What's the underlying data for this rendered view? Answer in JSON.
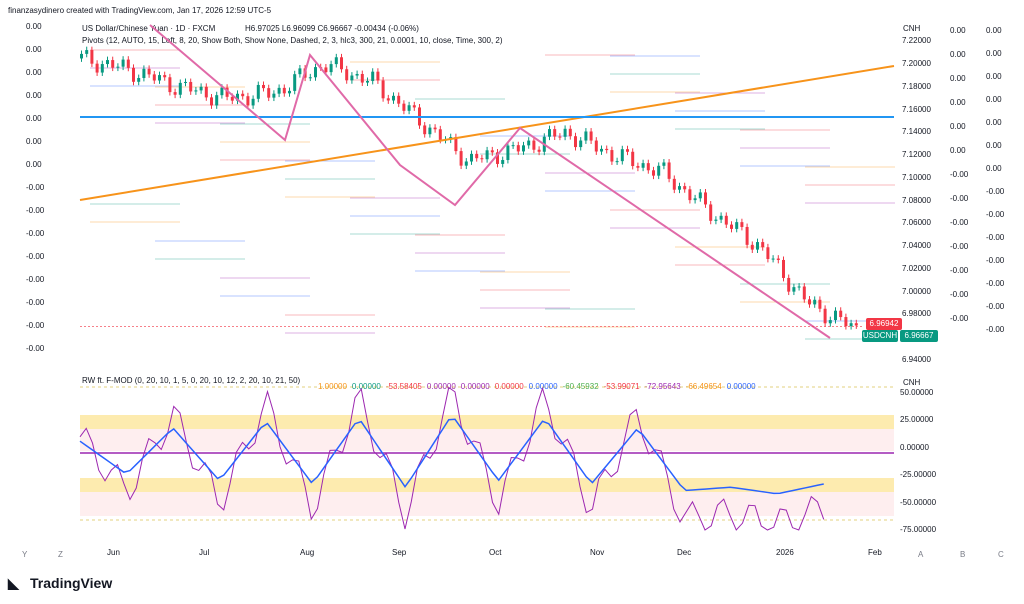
{
  "header": {
    "credit": "finanzasydinero created with TradingView.com, Jan 17, 2026 12:59 UTC-5",
    "symbol_line": "US Dollar/Chinese Yuan · 1D · FXCM",
    "ohlc": "H6.97025 L6.96099 C6.96667 -0.00434 (-0.06%)",
    "pivots_line": "Pivots (12, AUTO, 15, Left, 8, 20, Show Both, Show None, Dashed, 2, 3, hlc3, 300, 21, 0.0001, 10, close, Time, 300, 2)",
    "indicator_line": "RW ft. F-MOD (0, 20, 10, 1, 5, 0, 20, 10, 12, 2, 20, 10, 21, 50)",
    "indicator_values": [
      "1.00000",
      "0.00000",
      "-53.58405",
      "0.00000",
      "0.00000",
      "0.00000",
      "0.00000",
      "-60.45932",
      "-53.99071",
      "-72.95643",
      "-66.49654",
      "0.00000"
    ],
    "indicator_colors": [
      "#f7931a",
      "#089981",
      "#f23645",
      "#9c27b0",
      "#9c27b0",
      "#f23645",
      "#2962ff",
      "#4caf50",
      "#f23645",
      "#9c27b0",
      "#f7931a",
      "#2962ff"
    ]
  },
  "price_scale": {
    "currency": "CNH",
    "ticks": [
      "7.22000",
      "7.20000",
      "7.18000",
      "7.16000",
      "7.14000",
      "7.12000",
      "7.10000",
      "7.08000",
      "7.06000",
      "7.04000",
      "7.02000",
      "7.00000",
      "6.98000",
      "6.96000",
      "6.94000"
    ],
    "last_price_tag": "6.96942",
    "symbol_tag": "USDCNH",
    "close_tag": "6.96667"
  },
  "left_scale": [
    "0.00",
    "0.00",
    "0.00",
    "0.00",
    "0.00",
    "0.00",
    "0.00",
    "-0.00",
    "-0.00",
    "-0.00",
    "-0.00",
    "-0.00",
    "-0.00",
    "-0.00",
    "-0.00"
  ],
  "right_scale_a": [
    "0.00",
    "0.00",
    "0.00",
    "0.00",
    "0.00",
    "0.00",
    "-0.00",
    "-0.00",
    "-0.00",
    "-0.00",
    "-0.00",
    "-0.00",
    "-0.00"
  ],
  "right_scale_b": [
    "0.00",
    "0.00",
    "0.00",
    "0.00",
    "0.00",
    "0.00",
    "0.00",
    "-0.00",
    "-0.00",
    "-0.00",
    "-0.00",
    "-0.00",
    "-0.00",
    "-0.00"
  ],
  "osc_scale": {
    "currency": "CNH",
    "ticks": [
      "50.00000",
      "25.00000",
      "0.00000",
      "-25.00000",
      "-50.00000",
      "-75.00000"
    ]
  },
  "time_axis": {
    "labels": [
      "Jun",
      "Jul",
      "Aug",
      "Sep",
      "Oct",
      "Nov",
      "Dec",
      "2026",
      "Feb"
    ],
    "corner_left": [
      "Y",
      "Z"
    ],
    "corner_right": [
      "A",
      "B",
      "C"
    ]
  },
  "footer": {
    "brand": "TradingView"
  },
  "colors": {
    "up": "#089981",
    "down": "#f23645",
    "trend": "#f7931a",
    "diag": "#e06aa8",
    "hline": "#2196f3"
  },
  "chart_data": {
    "type": "line",
    "title": "US Dollar/Chinese Yuan · 1D · FXCM",
    "x": [
      "2025-05-15",
      "2025-06-01",
      "2025-06-15",
      "2025-07-01",
      "2025-07-15",
      "2025-08-01",
      "2025-08-15",
      "2025-09-01",
      "2025-09-15",
      "2025-10-01",
      "2025-10-15",
      "2025-11-01",
      "2025-11-15",
      "2025-12-01",
      "2025-12-15",
      "2026-01-01",
      "2026-01-16"
    ],
    "series": [
      {
        "name": "USDCNH",
        "values": [
          7.205,
          7.195,
          7.18,
          7.17,
          7.175,
          7.2,
          7.185,
          7.15,
          7.115,
          7.125,
          7.14,
          7.12,
          7.105,
          7.07,
          7.04,
          6.99,
          6.967
        ]
      }
    ],
    "ylim": [
      6.94,
      7.23
    ],
    "xlabel": "",
    "ylabel": "",
    "grid": false,
    "oscillator": {
      "name": "RW ft. F-MOD",
      "ylim": [
        -75,
        60
      ],
      "values": [
        10,
        -40,
        30,
        -50,
        40,
        -55,
        45,
        -60,
        50,
        -50,
        45,
        -55,
        30,
        -65,
        -60,
        -70,
        -55
      ]
    }
  }
}
